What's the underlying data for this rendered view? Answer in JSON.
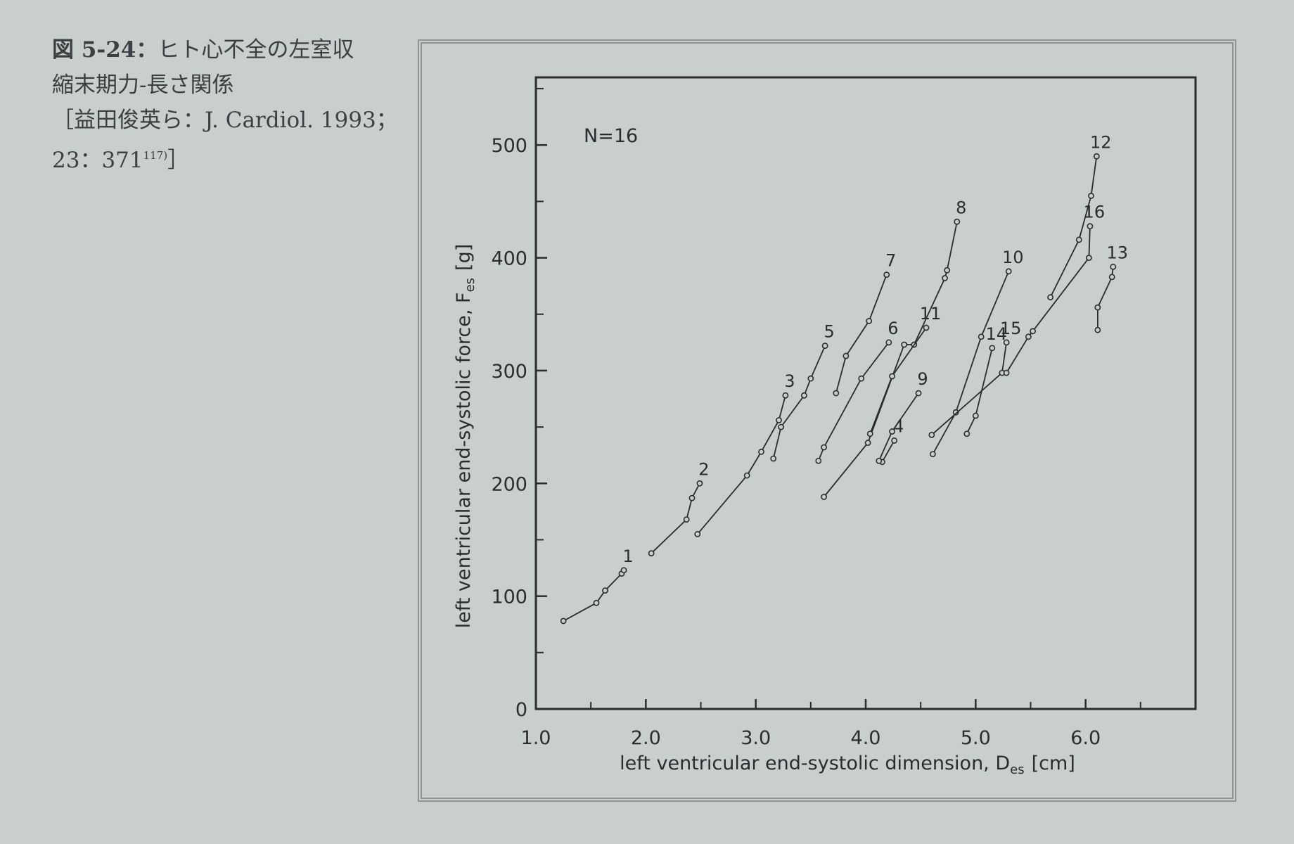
{
  "caption": {
    "fig_no": "図 5-24：",
    "title_line1": "ヒト心不全の左室収",
    "title_line2": "縮末期力-長さ関係",
    "ref_line1": "［益田俊英ら：J. Cardiol. 1993；",
    "ref_line2": "23：371",
    "ref_sup": "117)",
    "ref_close": "］"
  },
  "chart_data": {
    "type": "line",
    "annotation": "N=16",
    "xlabel": "left ventricular end-systolic dimension, D",
    "xlabel_sub": "es",
    "xlabel_unit": "[cm]",
    "ylabel": "left ventricular end-systolic force, F",
    "ylabel_sub": "es",
    "ylabel_unit": "[g]",
    "xlim": [
      1.0,
      7.0
    ],
    "ylim": [
      0,
      560
    ],
    "xticks": [
      1.0,
      2.0,
      3.0,
      4.0,
      5.0,
      6.0
    ],
    "xtick_labels": [
      "1.0",
      "2.0",
      "3.0",
      "4.0",
      "5.0",
      "6.0"
    ],
    "yticks": [
      0,
      100,
      200,
      300,
      400,
      500
    ],
    "ytick_labels": [
      "0",
      "100",
      "200",
      "300",
      "400",
      "500"
    ],
    "grid": false,
    "series": [
      {
        "name": "1",
        "x": [
          1.25,
          1.55,
          1.63,
          1.78,
          1.8
        ],
        "y": [
          78,
          94,
          105,
          120,
          123
        ]
      },
      {
        "name": "2",
        "x": [
          2.05,
          2.37,
          2.42,
          2.49
        ],
        "y": [
          138,
          168,
          187,
          200
        ]
      },
      {
        "name": "3",
        "x": [
          2.47,
          2.92,
          3.05,
          3.21,
          3.27
        ],
        "y": [
          155,
          207,
          228,
          256,
          278
        ]
      },
      {
        "name": "5",
        "x": [
          3.16,
          3.23,
          3.44,
          3.5,
          3.63
        ],
        "y": [
          222,
          250,
          278,
          293,
          322
        ]
      },
      {
        "name": "7",
        "x": [
          3.73,
          3.82,
          4.03,
          4.19
        ],
        "y": [
          280,
          313,
          344,
          385
        ]
      },
      {
        "name": "6",
        "x": [
          3.57,
          3.62,
          3.96,
          4.21
        ],
        "y": [
          220,
          232,
          293,
          325
        ]
      },
      {
        "name": "8",
        "x": [
          3.62,
          4.02,
          4.35,
          4.44,
          4.72,
          4.74,
          4.83
        ],
        "y": [
          188,
          236,
          323,
          323,
          382,
          389,
          432
        ]
      },
      {
        "name": "11",
        "x": [
          4.04,
          4.24,
          4.55
        ],
        "y": [
          244,
          295,
          338
        ]
      },
      {
        "name": "4",
        "x": [
          4.15,
          4.26
        ],
        "y": [
          219,
          238
        ]
      },
      {
        "name": "9",
        "x": [
          4.12,
          4.24,
          4.48
        ],
        "y": [
          220,
          246,
          280
        ]
      },
      {
        "name": "10",
        "x": [
          4.61,
          4.82,
          5.05,
          5.3
        ],
        "y": [
          226,
          263,
          330,
          388
        ]
      },
      {
        "name": "14",
        "x": [
          4.92,
          5.0,
          5.15
        ],
        "y": [
          244,
          260,
          320
        ]
      },
      {
        "name": "15",
        "x": [
          4.6,
          5.24,
          5.28
        ],
        "y": [
          243,
          298,
          325
        ]
      },
      {
        "name": "12",
        "x": [
          5.68,
          5.94,
          6.05,
          6.1
        ],
        "y": [
          365,
          416,
          455,
          490
        ]
      },
      {
        "name": "16",
        "x": [
          5.28,
          5.48,
          5.52,
          6.03,
          6.04
        ],
        "y": [
          298,
          330,
          335,
          400,
          428
        ]
      },
      {
        "name": "13",
        "x": [
          6.11,
          6.11,
          6.24,
          6.25
        ],
        "y": [
          336,
          356,
          383,
          392
        ]
      }
    ]
  }
}
